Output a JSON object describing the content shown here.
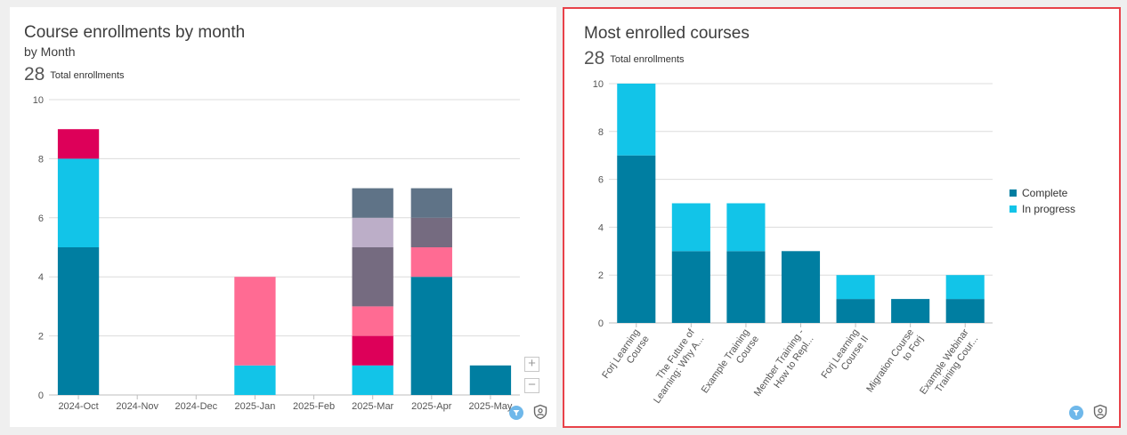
{
  "left": {
    "title": "Course enrollments by month",
    "subtitle": "by Month",
    "total_value": "28",
    "total_label": "Total enrollments",
    "zoom_in_label": "+",
    "zoom_out_label": "−"
  },
  "right": {
    "title": "Most enrolled courses",
    "total_value": "28",
    "total_label": "Total enrollments"
  },
  "chart_data": [
    {
      "type": "bar",
      "stacked": true,
      "title": "Course enrollments by month",
      "categories": [
        "2024-Oct",
        "2024-Nov",
        "2024-Dec",
        "2025-Jan",
        "2025-Feb",
        "2025-Mar",
        "2025-Apr",
        "2025-May"
      ],
      "ylim": [
        0,
        10
      ],
      "yticks": [
        0,
        2,
        4,
        6,
        8,
        10
      ],
      "grid": true,
      "legend": "none",
      "series": [
        {
          "color": "#007ea1",
          "values": [
            5,
            0,
            0,
            0,
            0,
            0,
            4,
            1
          ]
        },
        {
          "color": "#12c4e8",
          "values": [
            3,
            0,
            0,
            1,
            0,
            1,
            0,
            0
          ]
        },
        {
          "color": "#dd0059",
          "values": [
            1,
            0,
            0,
            0,
            0,
            1,
            0,
            0
          ]
        },
        {
          "color": "#ff6b93",
          "values": [
            0,
            0,
            0,
            3,
            0,
            1,
            1,
            0
          ]
        },
        {
          "color": "#756b80",
          "values": [
            0,
            0,
            0,
            0,
            0,
            2,
            1,
            0
          ]
        },
        {
          "color": "#bcaec8",
          "values": [
            0,
            0,
            0,
            0,
            0,
            1,
            0,
            0
          ]
        },
        {
          "color": "#5f7387",
          "values": [
            0,
            0,
            0,
            0,
            0,
            1,
            1,
            0
          ]
        }
      ]
    },
    {
      "type": "bar",
      "stacked": true,
      "title": "Most enrolled courses",
      "categories": [
        "Forj Learning Course",
        "The Future of Learning: Why A...",
        "Example Training Course",
        "Member Training - How to Repl...",
        "Forj Learning Course II",
        "Migration Course to Forj",
        "Example Webinar Training Cour..."
      ],
      "category_lines": [
        [
          "Forj Learning",
          "Course"
        ],
        [
          "The Future of",
          "Learning: Why A..."
        ],
        [
          "Example Training",
          "Course"
        ],
        [
          "Member Training -",
          "How to Repl..."
        ],
        [
          "Forj Learning",
          "Course II"
        ],
        [
          "Migration Course",
          "to Forj"
        ],
        [
          "Example Webinar",
          "Training Cour..."
        ]
      ],
      "ylim": [
        0,
        10
      ],
      "yticks": [
        0,
        2,
        4,
        6,
        8,
        10
      ],
      "grid": true,
      "legend": "right",
      "series": [
        {
          "name": "Complete",
          "color": "#007ea1",
          "values": [
            7,
            3,
            3,
            3,
            1,
            1,
            1
          ]
        },
        {
          "name": "In progress",
          "color": "#12c4e8",
          "values": [
            3,
            2,
            2,
            0,
            1,
            0,
            1
          ]
        }
      ]
    }
  ]
}
